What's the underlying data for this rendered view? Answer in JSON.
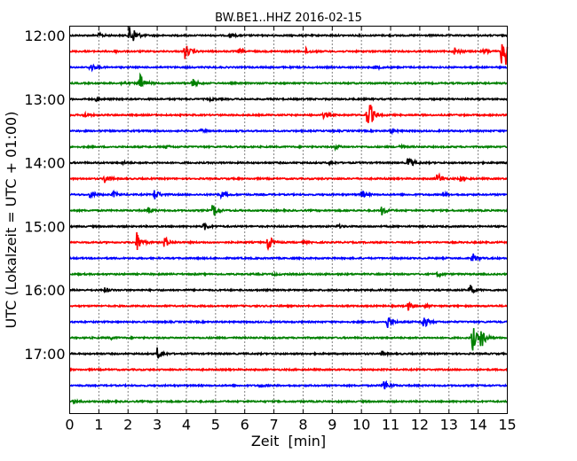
{
  "chart_data": {
    "type": "line",
    "title": "BW.BE1..HHZ 2016-02-15",
    "xlabel": "Zeit  [min]",
    "ylabel": "UTC (Lokalzeit = UTC + 01:00)",
    "xlim": [
      0,
      15
    ],
    "x_ticks": [
      0,
      1,
      2,
      3,
      4,
      5,
      6,
      7,
      8,
      9,
      10,
      11,
      12,
      13,
      14,
      15
    ],
    "y_ticks": [
      {
        "label": "12:00",
        "row": 0
      },
      {
        "label": "13:00",
        "row": 4
      },
      {
        "label": "14:00",
        "row": 8
      },
      {
        "label": "15:00",
        "row": 12
      },
      {
        "label": "16:00",
        "row": 16
      },
      {
        "label": "17:00",
        "row": 20
      }
    ],
    "grid": {
      "x": true,
      "y": false
    },
    "row_colors": [
      "#000000",
      "#ff0000",
      "#0000ff",
      "#008000"
    ],
    "traces": [
      {
        "start": "12:00",
        "events": [
          [
            1.0,
            0.25
          ],
          [
            2.05,
            1.0
          ],
          [
            2.2,
            0.6
          ],
          [
            5.5,
            0.3
          ]
        ]
      },
      {
        "start": "12:15",
        "events": [
          [
            1.5,
            0.2
          ],
          [
            3.95,
            1.1
          ],
          [
            5.8,
            0.3
          ],
          [
            8.1,
            0.35
          ],
          [
            13.2,
            0.5
          ],
          [
            14.2,
            0.4
          ],
          [
            14.8,
            1.6
          ],
          [
            14.95,
            1.2
          ]
        ]
      },
      {
        "start": "12:30",
        "events": [
          [
            0.7,
            0.6
          ],
          [
            10.5,
            0.2
          ]
        ]
      },
      {
        "start": "12:45",
        "events": [
          [
            1.8,
            0.25
          ],
          [
            2.4,
            1.3
          ],
          [
            4.2,
            0.6
          ]
        ]
      },
      {
        "start": "13:00",
        "events": [
          [
            0.9,
            0.2
          ],
          [
            4.8,
            0.15
          ]
        ]
      },
      {
        "start": "13:15",
        "events": [
          [
            0.5,
            0.3
          ],
          [
            8.7,
            0.3
          ],
          [
            10.2,
            1.5
          ],
          [
            10.3,
            0.8
          ]
        ]
      },
      {
        "start": "13:30",
        "events": [
          [
            4.5,
            0.2
          ],
          [
            11.0,
            0.3
          ]
        ]
      },
      {
        "start": "13:45",
        "events": [
          [
            3.3,
            0.2
          ],
          [
            9.1,
            0.3
          ],
          [
            11.3,
            0.2
          ]
        ]
      },
      {
        "start": "14:00",
        "events": [
          [
            1.8,
            0.2
          ],
          [
            8.9,
            0.2
          ],
          [
            11.6,
            0.9
          ]
        ]
      },
      {
        "start": "14:15",
        "events": [
          [
            1.2,
            0.6
          ],
          [
            12.6,
            0.8
          ],
          [
            13.4,
            0.4
          ]
        ]
      },
      {
        "start": "14:30",
        "events": [
          [
            0.7,
            0.5
          ],
          [
            1.5,
            0.4
          ],
          [
            2.9,
            0.8
          ],
          [
            5.2,
            0.5
          ],
          [
            10.0,
            0.5
          ],
          [
            12.8,
            0.25
          ]
        ]
      },
      {
        "start": "14:45",
        "events": [
          [
            2.7,
            0.4
          ],
          [
            4.9,
            1.0
          ],
          [
            10.7,
            0.6
          ]
        ]
      },
      {
        "start": "15:00",
        "events": [
          [
            4.6,
            0.5
          ],
          [
            9.2,
            0.2
          ]
        ]
      },
      {
        "start": "15:15",
        "events": [
          [
            2.3,
            1.3
          ],
          [
            3.25,
            0.8
          ],
          [
            6.8,
            1.1
          ],
          [
            8.0,
            0.2
          ]
        ]
      },
      {
        "start": "15:30",
        "events": [
          [
            13.8,
            0.7
          ]
        ]
      },
      {
        "start": "15:45",
        "events": [
          [
            12.6,
            0.3
          ],
          [
            7.0,
            0.15
          ]
        ]
      },
      {
        "start": "16:00",
        "events": [
          [
            1.2,
            0.3
          ],
          [
            13.7,
            0.8
          ]
        ]
      },
      {
        "start": "16:15",
        "events": [
          [
            11.6,
            0.5
          ],
          [
            12.2,
            0.2
          ]
        ]
      },
      {
        "start": "16:30",
        "events": [
          [
            10.9,
            0.9
          ],
          [
            12.1,
            1.1
          ]
        ]
      },
      {
        "start": "16:45",
        "events": [
          [
            1.4,
            0.15
          ],
          [
            13.8,
            1.8
          ],
          [
            14.1,
            1.3
          ]
        ]
      },
      {
        "start": "17:00",
        "events": [
          [
            3.0,
            0.8
          ],
          [
            10.7,
            0.3
          ]
        ]
      },
      {
        "start": "17:15",
        "events": []
      },
      {
        "start": "17:30",
        "events": [
          [
            6.5,
            0.2
          ],
          [
            10.75,
            1.0
          ]
        ]
      },
      {
        "start": "17:45",
        "events": [
          [
            0.15,
            0.35
          ]
        ]
      }
    ]
  }
}
